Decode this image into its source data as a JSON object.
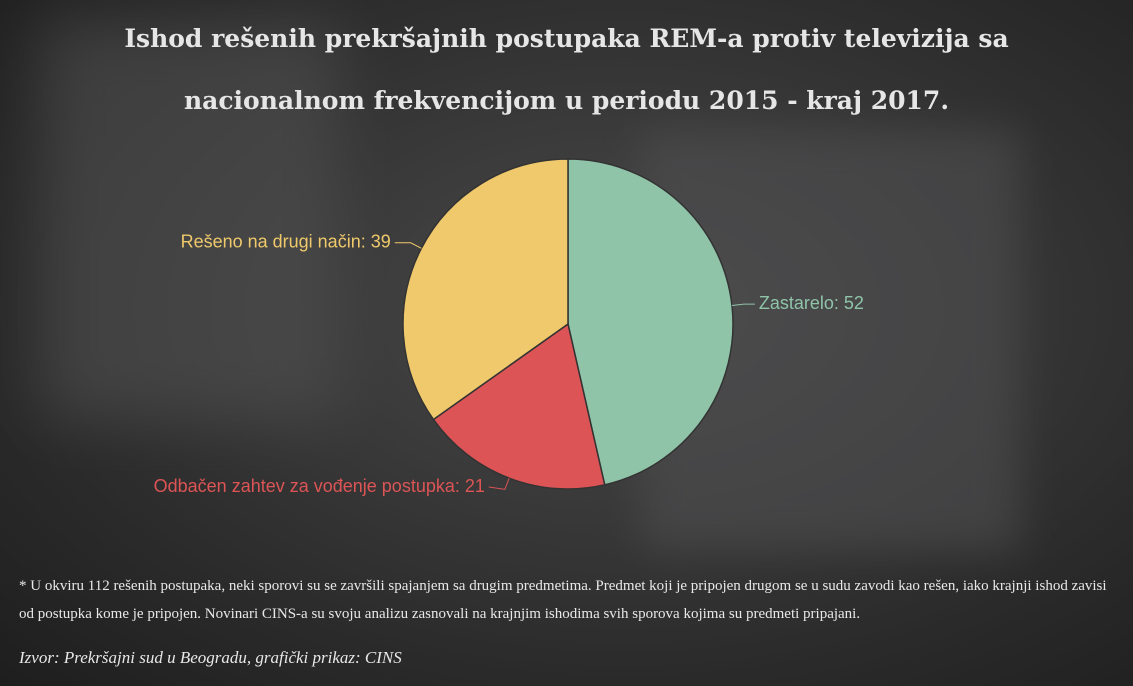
{
  "chart_data": {
    "type": "pie",
    "title": "Ishod rešenih prekršajnih postupaka REM-a protiv televizija sa nacionalnom frekvencijom u periodu 2015 - kraj 2017.",
    "values": [
      52,
      21,
      39
    ],
    "value_labels": [
      "Zastarelo: 52",
      "Odbačen zahtev za vođenje postupka: 21",
      "Rešeno na drugi način: 39"
    ],
    "colors": [
      "#8fc4a9",
      "#dc5455",
      "#efc96b"
    ]
  },
  "footnote": "* U okviru 112 rešenih postupaka, neki sporovi su se završili spajanjem sa drugim predmetima. Predmet koji je pripojen drugom se u sudu zavodi kao rešen, iako krajnji ishod zavisi od postupka kome je pripojen. Novinari CINS-a su svoju analizu zasnovali na krajnjim ishodima svih sporova kojima su predmeti pripajani.",
  "source": "Izvor: Prekršajni sud u Beogradu, grafički prikaz: CINS"
}
